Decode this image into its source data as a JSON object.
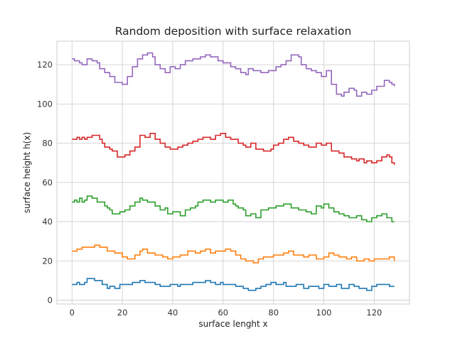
{
  "chart_data": {
    "type": "line",
    "drawstyle": "steps",
    "title": "Random deposition with surface relaxation",
    "xlabel": "surface lenght x",
    "ylabel": "surface height h(x)",
    "xlim": [
      -6,
      134
    ],
    "ylim": [
      -2,
      132
    ],
    "xticks": [
      0,
      20,
      40,
      60,
      80,
      100,
      120
    ],
    "yticks": [
      0,
      20,
      40,
      60,
      80,
      100,
      120
    ],
    "grid": true,
    "legend": "none",
    "series": [
      {
        "color": "#1f77b4",
        "x": [
          0,
          2,
          3,
          5,
          6,
          9,
          12,
          14,
          15,
          17,
          19,
          24,
          27,
          29,
          33,
          35,
          39,
          42,
          43,
          48,
          53,
          55,
          57,
          59,
          60,
          65,
          68,
          70,
          73,
          75,
          77,
          79,
          81,
          84,
          85,
          89,
          92,
          94,
          98,
          100,
          102,
          105,
          107,
          110,
          112,
          114,
          117,
          119,
          121,
          126,
          128
        ],
        "y": [
          8,
          9,
          8,
          9,
          11,
          10,
          8,
          6,
          7,
          6,
          8,
          9,
          10,
          9,
          8,
          7,
          8,
          7,
          8,
          9,
          10,
          9,
          8,
          9,
          8,
          7,
          6,
          5,
          6,
          7,
          8,
          9,
          8,
          9,
          7,
          8,
          6,
          7,
          6,
          8,
          7,
          8,
          6,
          8,
          7,
          6,
          5,
          7,
          8,
          7,
          7
        ]
      },
      {
        "color": "#ff7f0e",
        "x": [
          0,
          2,
          4,
          9,
          11,
          14,
          17,
          20,
          22,
          25,
          27,
          28,
          30,
          33,
          36,
          38,
          40,
          43,
          46,
          49,
          51,
          53,
          55,
          57,
          61,
          63,
          65,
          67,
          69,
          72,
          74,
          76,
          80,
          84,
          86,
          88,
          92,
          94,
          97,
          100,
          102,
          104,
          106,
          109,
          111,
          113,
          116,
          118,
          120,
          124,
          126,
          128
        ],
        "y": [
          25,
          26,
          27,
          28,
          27,
          25,
          24,
          22,
          21,
          23,
          25,
          26,
          24,
          23,
          22,
          21,
          22,
          23,
          25,
          24,
          25,
          26,
          24,
          25,
          26,
          25,
          23,
          21,
          20,
          19,
          21,
          22,
          23,
          24,
          25,
          23,
          22,
          23,
          21,
          22,
          24,
          23,
          22,
          21,
          22,
          20,
          21,
          20,
          21,
          21,
          22,
          20
        ]
      },
      {
        "color": "#2ca02c",
        "x": [
          0,
          1,
          2,
          3,
          4,
          5,
          6,
          8,
          10,
          13,
          14,
          15,
          16,
          19,
          21,
          23,
          25,
          27,
          28,
          30,
          33,
          35,
          37,
          38,
          40,
          43,
          45,
          47,
          49,
          50,
          52,
          55,
          57,
          60,
          62,
          64,
          65,
          66,
          68,
          69,
          71,
          73,
          75,
          78,
          81,
          84,
          87,
          90,
          93,
          95,
          97,
          99,
          100,
          102,
          104,
          106,
          108,
          110,
          113,
          115,
          117,
          119,
          121,
          123,
          125,
          127,
          128
        ],
        "y": [
          50,
          51,
          50,
          52,
          50,
          51,
          53,
          52,
          50,
          48,
          47,
          46,
          44,
          45,
          46,
          48,
          50,
          52,
          51,
          50,
          48,
          46,
          47,
          44,
          45,
          43,
          46,
          47,
          48,
          50,
          51,
          50,
          51,
          50,
          51,
          49,
          48,
          47,
          46,
          43,
          44,
          42,
          46,
          47,
          48,
          49,
          47,
          46,
          45,
          44,
          48,
          47,
          49,
          47,
          45,
          44,
          43,
          42,
          43,
          41,
          40,
          42,
          43,
          44,
          42,
          40,
          40
        ]
      },
      {
        "color": "#d62728",
        "x": [
          0,
          2,
          3,
          4,
          5,
          6,
          8,
          11,
          12,
          13,
          15,
          16,
          18,
          21,
          23,
          25,
          27,
          29,
          31,
          33,
          35,
          37,
          39,
          42,
          44,
          46,
          48,
          50,
          52,
          55,
          57,
          59,
          61,
          63,
          66,
          68,
          69,
          71,
          73,
          76,
          79,
          80,
          82,
          84,
          86,
          88,
          90,
          92,
          94,
          97,
          99,
          101,
          103,
          106,
          108,
          111,
          113,
          114,
          116,
          117,
          119,
          121,
          123,
          125,
          126,
          127,
          128
        ],
        "y": [
          82,
          83,
          82,
          83,
          82,
          83,
          84,
          82,
          80,
          78,
          77,
          76,
          73,
          74,
          76,
          78,
          84,
          83,
          85,
          82,
          80,
          78,
          77,
          78,
          79,
          80,
          81,
          82,
          83,
          82,
          84,
          85,
          83,
          82,
          80,
          79,
          78,
          80,
          77,
          76,
          77,
          79,
          80,
          82,
          83,
          81,
          80,
          79,
          78,
          80,
          79,
          80,
          76,
          75,
          73,
          72,
          71,
          72,
          70,
          71,
          70,
          71,
          73,
          74,
          73,
          70,
          69
        ]
      },
      {
        "color": "#9467bd",
        "x": [
          0,
          1,
          3,
          4,
          6,
          8,
          10,
          11,
          13,
          15,
          17,
          20,
          22,
          24,
          26,
          28,
          30,
          32,
          33,
          35,
          37,
          39,
          41,
          43,
          45,
          48,
          51,
          53,
          55,
          58,
          60,
          63,
          65,
          67,
          69,
          70,
          72,
          75,
          78,
          81,
          83,
          85,
          87,
          90,
          91,
          93,
          95,
          97,
          99,
          101,
          103,
          105,
          107,
          108,
          110,
          112,
          113,
          115,
          117,
          119,
          121,
          124,
          126,
          127,
          128
        ],
        "y": [
          123,
          122,
          121,
          120,
          123,
          122,
          121,
          118,
          116,
          114,
          111,
          110,
          114,
          119,
          123,
          125,
          126,
          124,
          120,
          118,
          116,
          119,
          118,
          120,
          122,
          123,
          124,
          125,
          124,
          122,
          121,
          119,
          118,
          116,
          115,
          118,
          117,
          116,
          117,
          119,
          120,
          122,
          125,
          124,
          120,
          118,
          117,
          116,
          114,
          117,
          110,
          105,
          104,
          106,
          108,
          107,
          104,
          106,
          105,
          107,
          109,
          112,
          111,
          110,
          109
        ]
      }
    ]
  }
}
